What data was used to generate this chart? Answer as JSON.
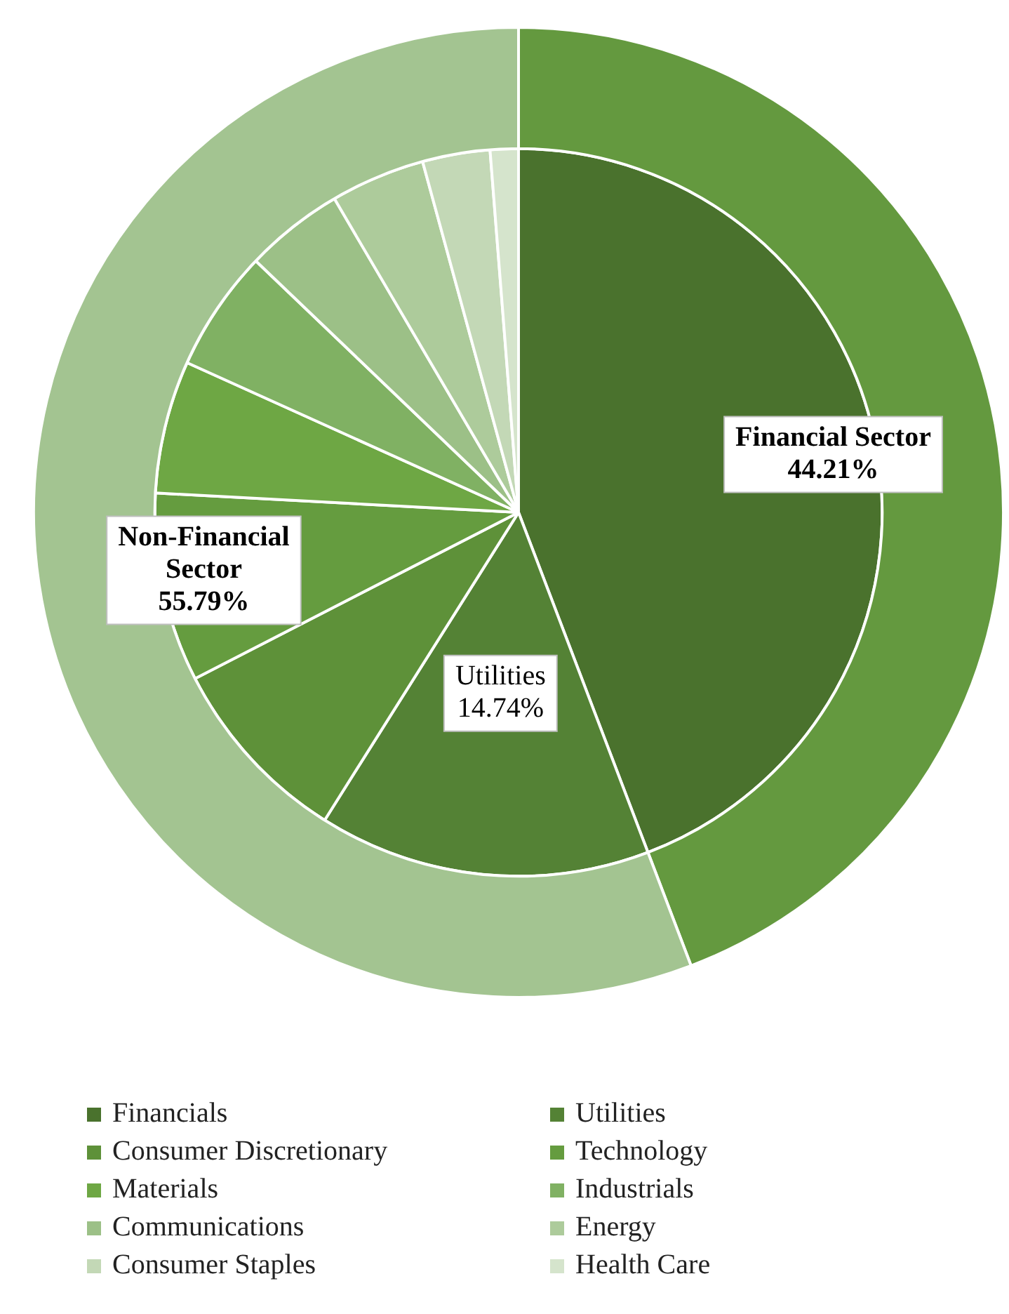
{
  "chart_data": [
    {
      "type": "donut",
      "categories": [
        "Financial Sector",
        "Non-Financial Sector"
      ],
      "values": [
        44.21,
        55.79
      ],
      "colors": [
        "#64993f",
        "#a3c491"
      ],
      "value_labels": [
        "44.21%",
        "55.79%"
      ]
    },
    {
      "type": "pie",
      "legend": "bottom",
      "categories": [
        "Financials",
        "Utilities",
        "Consumer Discretionary",
        "Technology",
        "Materials",
        "Industrials",
        "Communications",
        "Energy",
        "Consumer Staples",
        "Health Care"
      ],
      "values": [
        44.21,
        14.74,
        8.5,
        8.4,
        5.9,
        5.4,
        4.4,
        4.2,
        3.0,
        1.25
      ],
      "colors": [
        "#4a722d",
        "#548235",
        "#5e9139",
        "#659c3f",
        "#6ea744",
        "#80b163",
        "#9cc087",
        "#adcb9b",
        "#c3d8b6",
        "#d5e4cc"
      ],
      "value_labels": [
        null,
        "14.74%",
        null,
        null,
        null,
        null,
        null,
        null,
        null,
        null
      ]
    }
  ]
}
